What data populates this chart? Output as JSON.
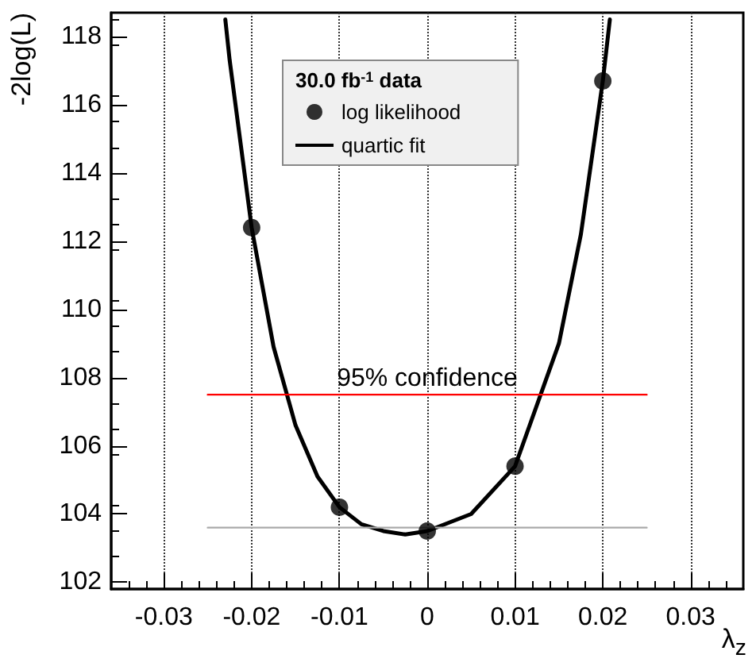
{
  "chart_data": {
    "type": "scatter",
    "xlabel": "λ$_{z}$",
    "ylabel": "-2log(L)",
    "legend_title": "30.0 fb$^{-1}$ data",
    "xlim": [
      -0.036,
      0.036
    ],
    "xticks": [
      -0.03,
      -0.02,
      -0.01,
      0,
      0.01,
      0.02,
      0.03
    ],
    "ylim": [
      101.8,
      118.7
    ],
    "yticks": [
      102,
      104,
      106,
      108,
      110,
      112,
      114,
      116,
      118
    ],
    "grid": "x",
    "legend": "top",
    "marker": "circle",
    "series": [
      {
        "name": "log likelihood",
        "color": "#000000",
        "x": [
          -0.02,
          -0.01,
          0,
          0.01,
          0.02
        ],
        "values": [
          112.4,
          104.2,
          103.5,
          105.4,
          116.7
        ]
      },
      {
        "name": "quartic fit",
        "type": "line",
        "color": "#000000",
        "marker": "none",
        "line_style": "solid",
        "x": [
          -0.023,
          -0.0225,
          -0.02,
          -0.0175,
          -0.015,
          -0.0125,
          -0.01,
          -0.0075,
          -0.005,
          -0.0025,
          0,
          0.005,
          0.01,
          0.015,
          0.0175,
          0.02,
          0.0208
        ],
        "values": [
          118.5,
          117.3,
          112.4,
          108.9,
          106.6,
          105.1,
          104.2,
          103.7,
          103.5,
          103.4,
          103.5,
          104.0,
          105.4,
          109.0,
          112.2,
          116.7,
          118.5
        ]
      },
      {
        "type": "line",
        "color": "#ff0000",
        "marker": "none",
        "line_style": "solid",
        "x": [
          -0.025,
          0.025
        ],
        "values": [
          107.5,
          107.5
        ]
      },
      {
        "type": "line",
        "color": "#aaaaaa",
        "marker": "none",
        "line_style": "solid",
        "x": [
          -0.025,
          0.025
        ],
        "values": [
          103.6,
          103.6
        ]
      }
    ],
    "annotations": [
      {
        "text": "95% confidence",
        "x": 0,
        "y": 107.5
      }
    ]
  }
}
